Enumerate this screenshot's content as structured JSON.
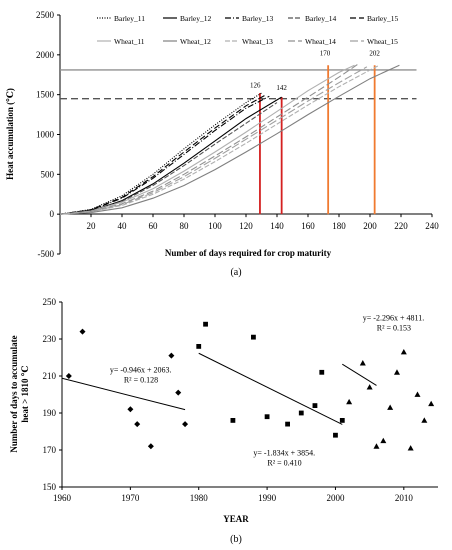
{
  "chart_data": [
    {
      "type": "line",
      "panel_label": "(a)",
      "xlabel": "Number of days required for crop maturity",
      "ylabel": "Heat accumulation (℃)",
      "xlim": [
        0,
        240
      ],
      "ylim": [
        -500,
        2500
      ],
      "xticks": [
        "20",
        "40",
        "60",
        "80",
        "100",
        "120",
        "140",
        "160",
        "180",
        "200",
        "220",
        "240"
      ],
      "yticks": [
        "-500",
        "0",
        "500",
        "1000",
        "1500",
        "2000",
        "2500"
      ],
      "grid": false,
      "legend_position": "top",
      "series": [
        {
          "name": "Barley_11",
          "dash": "1,1.5",
          "color": "#000000",
          "x": [
            0,
            20,
            40,
            60,
            80,
            100,
            120,
            130
          ],
          "y": [
            0,
            60,
            230,
            500,
            820,
            1120,
            1400,
            1520
          ]
        },
        {
          "name": "Barley_12",
          "dash": "",
          "color": "#000000",
          "x": [
            0,
            20,
            40,
            60,
            80,
            100,
            120,
            143
          ],
          "y": [
            0,
            40,
            170,
            380,
            640,
            920,
            1200,
            1470
          ]
        },
        {
          "name": "Barley_13",
          "dash": "6,2,1,2",
          "color": "#000000",
          "x": [
            0,
            20,
            40,
            60,
            80,
            100,
            120,
            135
          ],
          "y": [
            0,
            50,
            200,
            450,
            750,
            1050,
            1330,
            1480
          ]
        },
        {
          "name": "Barley_14",
          "dash": "5,2",
          "color": "#555555",
          "x": [
            0,
            20,
            40,
            60,
            80,
            100,
            120,
            140
          ],
          "y": [
            0,
            40,
            160,
            360,
            610,
            880,
            1140,
            1400
          ]
        },
        {
          "name": "Barley_15",
          "dash": "6,3",
          "color": "#000000",
          "x": [
            0,
            20,
            40,
            60,
            80,
            100,
            120,
            133
          ],
          "y": [
            0,
            55,
            210,
            470,
            780,
            1080,
            1360,
            1500
          ]
        },
        {
          "name": "Wheat_11",
          "dash": "",
          "color": "#b0b0b0",
          "x": [
            0,
            20,
            40,
            60,
            80,
            100,
            120,
            140,
            160,
            180,
            190
          ],
          "y": [
            0,
            40,
            150,
            320,
            540,
            780,
            1030,
            1290,
            1550,
            1780,
            1870
          ]
        },
        {
          "name": "Wheat_12",
          "dash": "",
          "color": "#808080",
          "x": [
            0,
            20,
            40,
            60,
            80,
            100,
            120,
            140,
            160,
            180,
            200,
            219
          ],
          "y": [
            0,
            20,
            80,
            200,
            360,
            560,
            780,
            1010,
            1250,
            1480,
            1700,
            1870
          ]
        },
        {
          "name": "Wheat_13",
          "dash": "5,2",
          "color": "#b0b0b0",
          "x": [
            0,
            20,
            40,
            60,
            80,
            100,
            120,
            140,
            160,
            180,
            200,
            205
          ],
          "y": [
            0,
            30,
            110,
            250,
            440,
            660,
            890,
            1130,
            1370,
            1600,
            1810,
            1860
          ]
        },
        {
          "name": "Wheat_14",
          "dash": "7,3",
          "color": "#909090",
          "x": [
            0,
            20,
            40,
            60,
            80,
            100,
            120,
            140,
            160,
            180,
            192
          ],
          "y": [
            0,
            35,
            130,
            290,
            500,
            730,
            970,
            1220,
            1470,
            1720,
            1880
          ]
        },
        {
          "name": "Wheat_15",
          "dash": "8,3",
          "color": "#a0a0a0",
          "x": [
            0,
            20,
            40,
            60,
            80,
            100,
            120,
            140,
            160,
            180,
            198
          ],
          "y": [
            0,
            30,
            120,
            270,
            470,
            700,
            940,
            1180,
            1420,
            1650,
            1850
          ]
        }
      ],
      "reference_lines": {
        "horizontal": [
          {
            "y": 1810,
            "style": "solid",
            "color": "#909090"
          },
          {
            "y": 1450,
            "style": "dashed",
            "color": "#555555"
          }
        ],
        "vertical": [
          {
            "x": 129,
            "color": "#d42020",
            "y_top": 1520
          },
          {
            "x": 143,
            "color": "#d42020",
            "y_top": 1470
          },
          {
            "x": 173,
            "color": "#f07a30",
            "y_top": 1870
          },
          {
            "x": 203,
            "color": "#f07a30",
            "y_top": 1870
          }
        ]
      },
      "annotations": [
        {
          "text": "126",
          "x": 126,
          "y": 1590
        },
        {
          "text": "142",
          "x": 143,
          "y": 1560
        },
        {
          "text": "170",
          "x": 171,
          "y": 1990
        },
        {
          "text": "202",
          "x": 203,
          "y": 1990
        }
      ]
    },
    {
      "type": "scatter",
      "panel_label": "(b)",
      "xlabel": "YEAR",
      "ylabel_lines": [
        "Number of days to accumulate",
        "heat > 1810 ℃"
      ],
      "xlim": [
        1960,
        2015
      ],
      "ylim": [
        150,
        250
      ],
      "xticks": [
        "1960",
        "1970",
        "1980",
        "1990",
        "2000",
        "2010"
      ],
      "xtick_values": [
        1960,
        1970,
        1980,
        1990,
        2000,
        2010
      ],
      "yticks": [
        "150",
        "170",
        "190",
        "210",
        "230",
        "250"
      ],
      "grid": false,
      "groups": [
        {
          "marker": "diamond",
          "points": [
            [
              1961,
              210
            ],
            [
              1963,
              234
            ],
            [
              1970,
              192
            ],
            [
              1971,
              184
            ],
            [
              1973,
              172
            ],
            [
              1976,
              221
            ],
            [
              1977,
              201
            ],
            [
              1978,
              184
            ]
          ],
          "trend": {
            "x": [
              1960,
              1978
            ],
            "y": [
              208.8,
              191.8
            ]
          },
          "equation": "y= -0.946x + 2063.",
          "r2": "R² = 0.128"
        },
        {
          "marker": "square",
          "points": [
            [
              1980,
              226
            ],
            [
              1981,
              238
            ],
            [
              1985,
              186
            ],
            [
              1988,
              231
            ],
            [
              1990,
              188
            ],
            [
              1993,
              184
            ],
            [
              1995,
              190
            ],
            [
              1997,
              194
            ],
            [
              1998,
              212
            ],
            [
              2000,
              178
            ],
            [
              2001,
              186
            ]
          ],
          "trend": {
            "x": [
              1980,
              2001
            ],
            "y": [
              222.3,
              183.8
            ]
          },
          "equation": "y= -1.834x + 3854.",
          "r2": "R² = 0.410"
        },
        {
          "marker": "triangle",
          "points": [
            [
              2002,
              196
            ],
            [
              2004,
              217
            ],
            [
              2005,
              204
            ],
            [
              2006,
              172
            ],
            [
              2007,
              175
            ],
            [
              2008,
              193
            ],
            [
              2009,
              212
            ],
            [
              2010,
              223
            ],
            [
              2011,
              171
            ],
            [
              2012,
              200
            ],
            [
              2013,
              186
            ],
            [
              2014,
              195
            ]
          ],
          "trend": {
            "x": [
              2001,
              2006
            ],
            "y": [
              216.4,
              204.9
            ]
          },
          "equation": "y= -2.296x + 4811.",
          "r2": "R² = 0.153"
        }
      ]
    }
  ]
}
